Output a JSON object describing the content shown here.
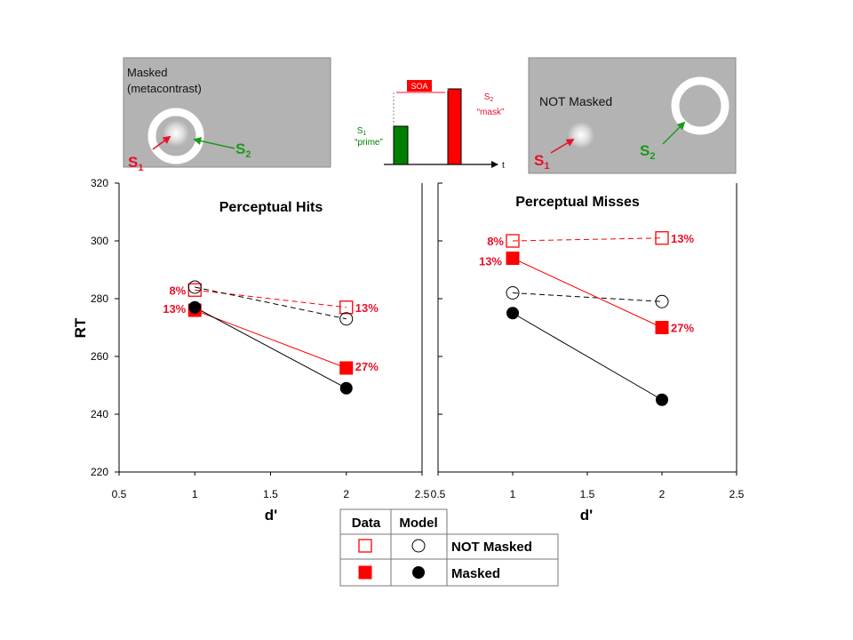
{
  "stimulus_panels": {
    "masked": {
      "label_line1": "Masked",
      "label_line2": "(metacontrast)",
      "s1_label": "S",
      "s1_sub": "1",
      "s2_label": "S",
      "s2_sub": "2"
    },
    "timing": {
      "soa_label": "SOA",
      "s1_label": "S",
      "s1_sub": "1",
      "s1_caption": "“prime”",
      "s2_label": "S",
      "s2_sub": "2",
      "s2_caption": "“mask”",
      "t_label": "t"
    },
    "not_masked": {
      "label": "NOT Masked",
      "s1_label": "S",
      "s1_sub": "1",
      "s2_label": "S",
      "s2_sub": "2"
    }
  },
  "colors": {
    "red": "#ff0000",
    "green": "#008000",
    "green_arrow": "#1a9a1a",
    "black": "#000000",
    "panel_gray": "#b3b3b3"
  },
  "chart_data": [
    {
      "type": "line",
      "title": "Perceptual Hits",
      "xlabel": "d'",
      "ylabel": "RT",
      "xlim": [
        0.5,
        2.5
      ],
      "ylim": [
        220,
        320
      ],
      "xticks": [
        "0.5",
        "1",
        "1.5",
        "2",
        "2.5"
      ],
      "yticks": [
        "220",
        "240",
        "260",
        "280",
        "300",
        "320"
      ],
      "series": [
        {
          "kind": "data",
          "condition": "NOT Masked",
          "marker": "open-square",
          "style": "dashed",
          "color": "#ff0000",
          "x": [
            1,
            2
          ],
          "y": [
            283,
            277
          ],
          "labels": [
            "8%",
            "13%"
          ]
        },
        {
          "kind": "model",
          "condition": "NOT Masked",
          "marker": "open-circle",
          "style": "dashed",
          "color": "#000000",
          "x": [
            1,
            2
          ],
          "y": [
            284,
            273
          ]
        },
        {
          "kind": "data",
          "condition": "Masked",
          "marker": "filled-square",
          "style": "solid",
          "color": "#ff0000",
          "x": [
            1,
            2
          ],
          "y": [
            276,
            256
          ],
          "labels": [
            "13%",
            "27%"
          ]
        },
        {
          "kind": "model",
          "condition": "Masked",
          "marker": "filled-circle",
          "style": "solid",
          "color": "#000000",
          "x": [
            1,
            2
          ],
          "y": [
            277,
            249
          ]
        }
      ]
    },
    {
      "type": "line",
      "title": "Perceptual Misses",
      "xlabel": "d'",
      "ylabel": "",
      "xlim": [
        0.5,
        2.5
      ],
      "ylim": [
        220,
        320
      ],
      "xticks": [
        "0.5",
        "1",
        "1.5",
        "2",
        "2.5"
      ],
      "yticks": [],
      "series": [
        {
          "kind": "data",
          "condition": "NOT Masked",
          "marker": "open-square",
          "style": "dashed",
          "color": "#ff0000",
          "x": [
            1,
            2
          ],
          "y": [
            300,
            301
          ],
          "labels": [
            "8%",
            "13%"
          ]
        },
        {
          "kind": "model",
          "condition": "NOT Masked",
          "marker": "open-circle",
          "style": "dashed",
          "color": "#000000",
          "x": [
            1,
            2
          ],
          "y": [
            282,
            279
          ]
        },
        {
          "kind": "data",
          "condition": "Masked",
          "marker": "filled-square",
          "style": "solid",
          "color": "#ff0000",
          "x": [
            1,
            2
          ],
          "y": [
            294,
            270
          ],
          "labels": [
            "13%",
            "27%"
          ]
        },
        {
          "kind": "model",
          "condition": "Masked",
          "marker": "filled-circle",
          "style": "solid",
          "color": "#000000",
          "x": [
            1,
            2
          ],
          "y": [
            275,
            245
          ]
        }
      ]
    }
  ],
  "legend": {
    "header_data": "Data",
    "header_model": "Model",
    "rows": [
      {
        "label": "NOT Masked",
        "data_marker": "open-square",
        "model_marker": "open-circle"
      },
      {
        "label": "Masked",
        "data_marker": "filled-square",
        "model_marker": "filled-circle"
      }
    ]
  }
}
